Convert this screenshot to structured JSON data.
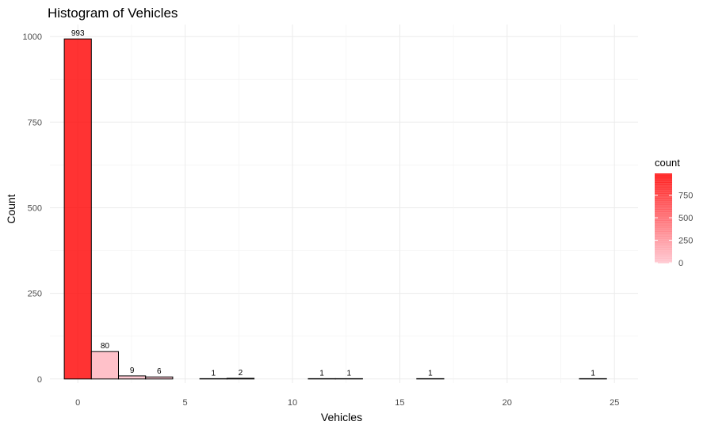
{
  "chart_data": {
    "type": "bar",
    "title": "Histogram of Vehicles",
    "xlabel": "Vehicles",
    "ylabel": "Count",
    "xlim": [
      -1.3,
      26.1
    ],
    "ylim": [
      -12,
      1035
    ],
    "xticks": [
      0,
      5,
      10,
      15,
      20,
      25
    ],
    "yticks": [
      0,
      250,
      500,
      750,
      1000
    ],
    "bin_width": 1.2632,
    "bins": [
      {
        "center": 0.0,
        "count": 993
      },
      {
        "center": 1.263,
        "count": 80
      },
      {
        "center": 2.526,
        "count": 9
      },
      {
        "center": 3.789,
        "count": 6
      },
      {
        "center": 5.053,
        "count": 0
      },
      {
        "center": 6.316,
        "count": 1
      },
      {
        "center": 7.579,
        "count": 2
      },
      {
        "center": 8.842,
        "count": 0
      },
      {
        "center": 10.105,
        "count": 0
      },
      {
        "center": 11.368,
        "count": 1
      },
      {
        "center": 12.632,
        "count": 1
      },
      {
        "center": 13.895,
        "count": 0
      },
      {
        "center": 15.158,
        "count": 0
      },
      {
        "center": 16.421,
        "count": 1
      },
      {
        "center": 17.684,
        "count": 0
      },
      {
        "center": 18.947,
        "count": 0
      },
      {
        "center": 20.211,
        "count": 0
      },
      {
        "center": 21.474,
        "count": 0
      },
      {
        "center": 22.737,
        "count": 0
      },
      {
        "center": 24.0,
        "count": 1
      }
    ],
    "fill_scale": {
      "low": "#ffc0cb",
      "high": "#ff0000",
      "alpha": 0.8
    },
    "bar_outline": "#000000",
    "grid": true,
    "legend": {
      "title": "count",
      "position": "right",
      "ticks": [
        0,
        250,
        500,
        750
      ],
      "range": [
        0,
        993
      ]
    }
  }
}
